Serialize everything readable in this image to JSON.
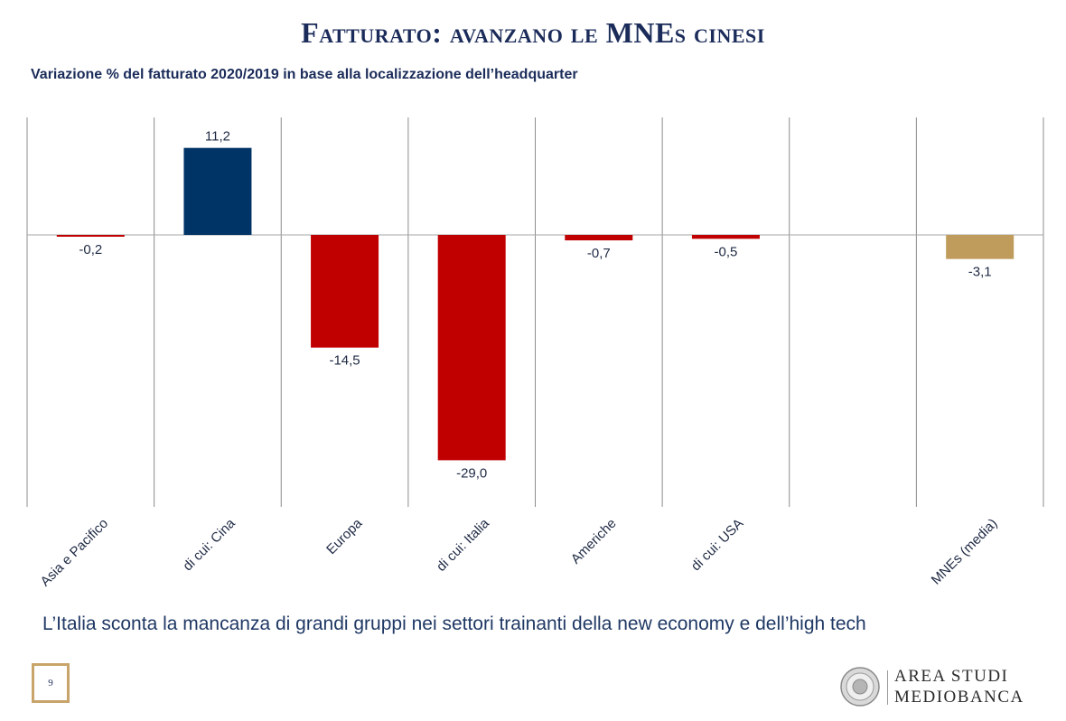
{
  "title": "Fatturato: avanzano le MNEs cinesi",
  "subtitle": "Variazione % del fatturato 2020/2019 in base alla localizzazione dell’headquarter",
  "note": "L’Italia sconta la mancanza di grandi gruppi nei settori trainanti della new economy e dell’high tech",
  "page_number": "9",
  "logo": {
    "line1": "AREA STUDI",
    "line2": "MEDIOBANCA"
  },
  "colors": {
    "navy": "#003366",
    "red": "#c00000",
    "gold": "#bf9b5c",
    "grid": "#8c8c8c",
    "text": "#1f2a44"
  },
  "chart_data": {
    "type": "bar",
    "title": "Variazione % del fatturato 2020/2019 in base alla localizzazione dell’headquarter",
    "categories": [
      "Asia e Pacifico",
      "di cui: Cina",
      "Europa",
      "di cui: Italia",
      "Americhe",
      "di cui: USA",
      "",
      "MNEs (media)"
    ],
    "values": [
      -0.2,
      11.2,
      -14.5,
      -29.0,
      -0.7,
      -0.5,
      null,
      -3.1
    ],
    "value_labels": [
      "-0,2",
      "11,2",
      "-14,5",
      "-29,0",
      "-0,7",
      "-0,5",
      "",
      "-3,1"
    ],
    "bar_colors": [
      "#c00000",
      "#003366",
      "#c00000",
      "#c00000",
      "#c00000",
      "#c00000",
      "",
      "#bf9b5c"
    ],
    "ylim": [
      -35,
      15
    ],
    "xlabel": "",
    "ylabel": "",
    "grid": "vertical separators",
    "legend": "none"
  }
}
